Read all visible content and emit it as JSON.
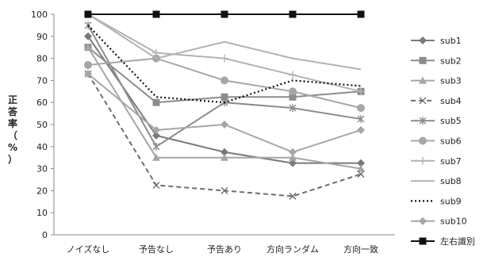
{
  "chart_data": {
    "type": "line",
    "categories": [
      "ノイズなし",
      "予告なし",
      "予告あり",
      "方向ランダム",
      "方向一致"
    ],
    "ylabel": "正答率（%）",
    "ylim": [
      0,
      100
    ],
    "yticks": [
      0,
      10,
      20,
      30,
      40,
      50,
      60,
      70,
      80,
      90,
      100
    ],
    "grid": false,
    "legend_position": "right",
    "series": [
      {
        "name": "sub1",
        "values": [
          90,
          45,
          37.5,
          32.5,
          32.5
        ],
        "color": "#7a7a7a",
        "dash": "solid",
        "marker": "diamond"
      },
      {
        "name": "sub2",
        "values": [
          85,
          60,
          62.5,
          62.5,
          65
        ],
        "color": "#8c8c8c",
        "dash": "solid",
        "marker": "square"
      },
      {
        "name": "sub3",
        "values": [
          85,
          35,
          35,
          35,
          30
        ],
        "color": "#a6a6a6",
        "dash": "solid",
        "marker": "triangle"
      },
      {
        "name": "sub4",
        "values": [
          73,
          22.5,
          20,
          17.5,
          27.5
        ],
        "color": "#6e6e6e",
        "dash": "dashed",
        "marker": "x"
      },
      {
        "name": "sub5",
        "values": [
          95,
          40,
          60,
          57.5,
          52.5
        ],
        "color": "#8c8c8c",
        "dash": "solid",
        "marker": "asterisk"
      },
      {
        "name": "sub6",
        "values": [
          77,
          80,
          70,
          65,
          57.5
        ],
        "color": "#a6a6a6",
        "dash": "solid",
        "marker": "circle"
      },
      {
        "name": "sub7",
        "values": [
          100,
          82.5,
          80,
          72.5,
          65
        ],
        "color": "#b3b3b3",
        "dash": "solid",
        "marker": "plus"
      },
      {
        "name": "sub8",
        "values": [
          100,
          80,
          87.5,
          80,
          75
        ],
        "color": "#b3b3b3",
        "dash": "solid",
        "marker": "none"
      },
      {
        "name": "sub9",
        "values": [
          95,
          62.5,
          60,
          70,
          67.5
        ],
        "color": "#111111",
        "dash": "dotted",
        "marker": "none"
      },
      {
        "name": "sub10",
        "values": [
          73,
          47.5,
          50,
          37.5,
          47.5
        ],
        "color": "#a6a6a6",
        "dash": "solid",
        "marker": "diamond"
      },
      {
        "name": "左右識別",
        "values": [
          100,
          100,
          100,
          100,
          100
        ],
        "color": "#111111",
        "dash": "solid",
        "marker": "square"
      }
    ]
  }
}
